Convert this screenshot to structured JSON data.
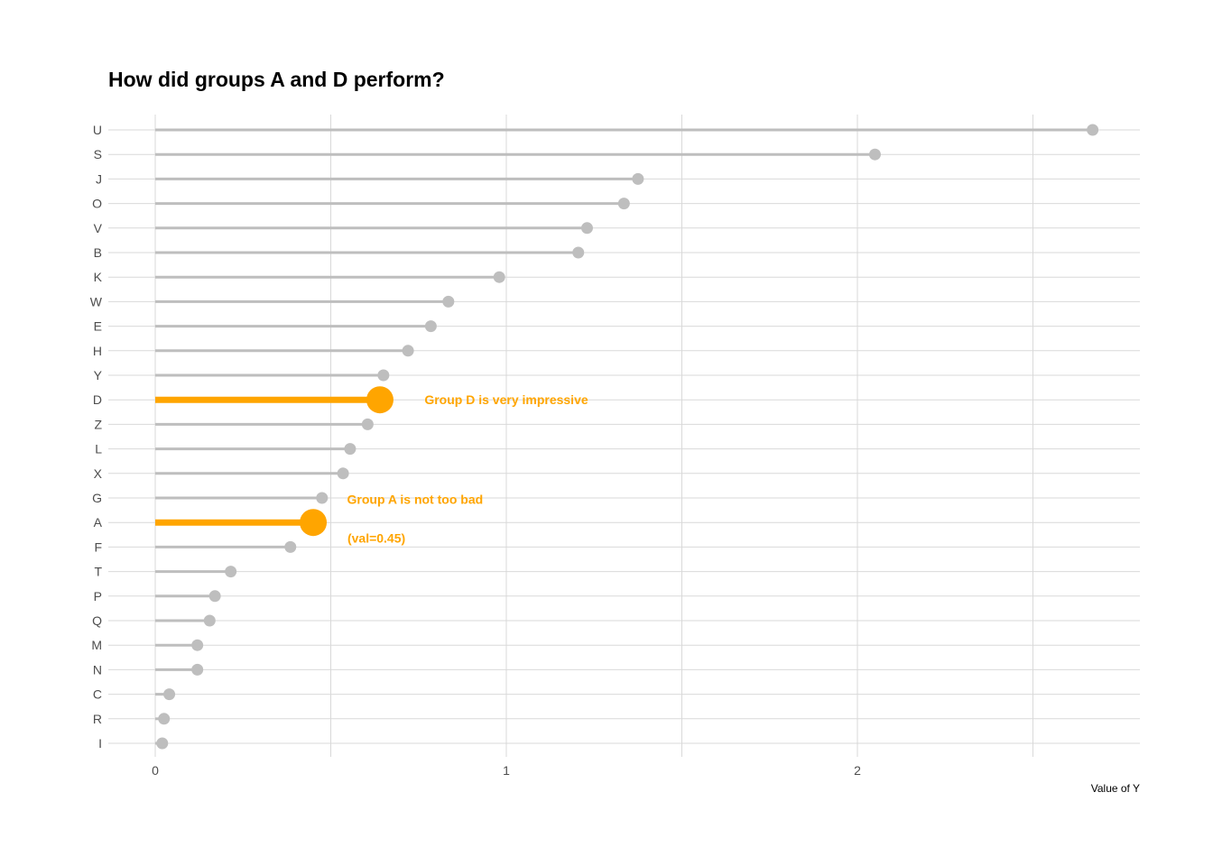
{
  "chart_data": {
    "type": "lollipop",
    "title": "How did groups A and D perform?",
    "xlabel": "Value of Y",
    "ylabel": "",
    "xlim": [
      -0.13,
      2.8
    ],
    "x_ticks": [
      0,
      1,
      2
    ],
    "x_minor_gridlines": [
      0.5,
      1.5,
      2.5
    ],
    "orientation": "horizontal",
    "grid": true,
    "categories": [
      "U",
      "S",
      "J",
      "O",
      "V",
      "B",
      "K",
      "W",
      "E",
      "H",
      "Y",
      "D",
      "Z",
      "L",
      "X",
      "G",
      "A",
      "F",
      "T",
      "P",
      "Q",
      "M",
      "N",
      "C",
      "R",
      "I"
    ],
    "values": [
      2.67,
      2.05,
      1.375,
      1.335,
      1.23,
      1.205,
      0.98,
      0.835,
      0.785,
      0.72,
      0.65,
      0.64,
      0.605,
      0.555,
      0.535,
      0.475,
      0.45,
      0.385,
      0.215,
      0.17,
      0.155,
      0.12,
      0.12,
      0.04,
      0.025,
      0.02
    ],
    "highlight": [
      "D",
      "A"
    ],
    "colors": {
      "default_line": "#bebebe",
      "default_point": "#bebebe",
      "highlight": "#ffa500",
      "grid": "#d9d9d9"
    },
    "annotations": [
      {
        "category": "D",
        "text": "Group D is very impressive",
        "x": 1.0
      },
      {
        "category": "A",
        "text": "Group A is not too bad",
        "x": 0.74
      },
      {
        "category": "A",
        "text": "(val=0.45)",
        "x": 0.63,
        "row_offset": 0.8
      }
    ]
  }
}
